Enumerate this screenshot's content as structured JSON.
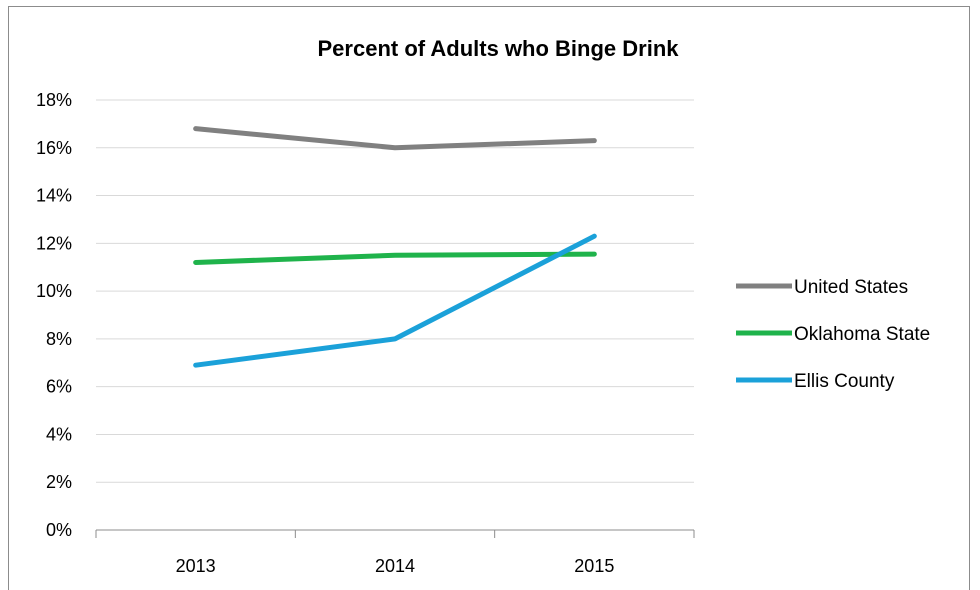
{
  "chart_data": {
    "type": "line",
    "title": "Percent of Adults who Binge Drink",
    "xlabel": "",
    "ylabel": "",
    "categories": [
      "2013",
      "2014",
      "2015"
    ],
    "y_tick_labels": [
      "0%",
      "2%",
      "4%",
      "6%",
      "8%",
      "10%",
      "12%",
      "14%",
      "16%",
      "18%"
    ],
    "ylim": [
      0,
      18
    ],
    "y_unit": "percent",
    "grid": true,
    "legend_position": "right",
    "series": [
      {
        "name": "United States",
        "color": "#808080",
        "values": [
          16.8,
          16.0,
          16.3
        ]
      },
      {
        "name": "Oklahoma State",
        "color": "#1fb34b",
        "values": [
          11.2,
          11.5,
          11.55
        ]
      },
      {
        "name": "Ellis County",
        "color": "#1ba1d9",
        "values": [
          6.9,
          8.0,
          12.3
        ]
      }
    ]
  }
}
